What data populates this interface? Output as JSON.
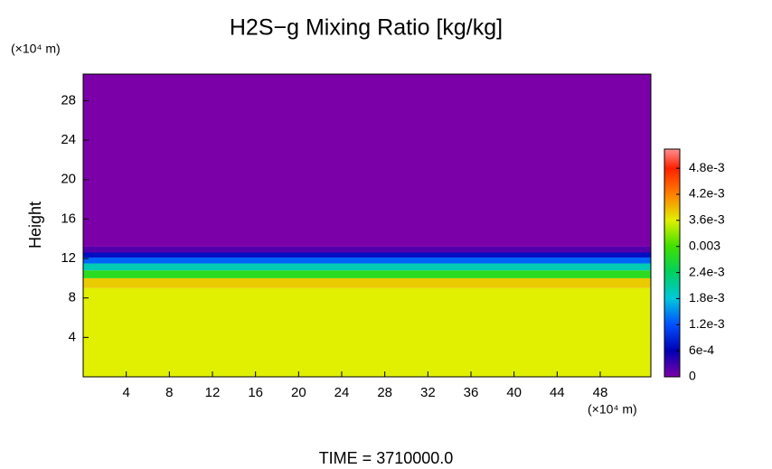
{
  "chart_data": {
    "type": "contour",
    "title": "H2S−g Mixing Ratio [kg/kg]",
    "y_label": "Height",
    "y_unit": "(×10⁴ m)",
    "x_unit": "(×10⁴ m)",
    "footer": "TIME = 3710000.0",
    "xlim": [
      0,
      52.7
    ],
    "ylim": [
      0,
      30.7
    ],
    "xticks": [
      4,
      8,
      12,
      16,
      20,
      24,
      28,
      32,
      36,
      40,
      44,
      48
    ],
    "yticks": [
      4,
      8,
      12,
      16,
      20,
      24,
      28
    ],
    "y_edges": [
      0,
      9,
      10,
      10.8,
      11.5,
      12.1,
      12.6,
      13.2,
      30.7
    ],
    "values": [
      0.0036,
      0.0038,
      0.0028,
      0.002,
      0.0013,
      0.0007,
      0.0002,
      0
    ],
    "clim": [
      0,
      0.00524
    ],
    "cticks": [
      0,
      {
        "value": 0.0006,
        "label": "6e-4"
      },
      {
        "value": 0.0012,
        "label": "1.2e-3"
      },
      {
        "value": 0.0018,
        "label": "1.8e-3"
      },
      {
        "value": 0.0024,
        "label": "2.4e-3"
      },
      0.003,
      {
        "value": 0.0036,
        "label": "3.6e-3"
      },
      {
        "value": 0.0042,
        "label": "4.2e-3"
      },
      {
        "value": 0.0048,
        "label": "4.8e-3"
      }
    ],
    "colorscale": [
      [
        0,
        "#7b00a8"
      ],
      [
        0.0006,
        "#0000b4"
      ],
      [
        0.0012,
        "#0050ff"
      ],
      [
        0.0018,
        "#00c8dc"
      ],
      [
        0.0024,
        "#00d060"
      ],
      [
        0.003,
        "#40e000"
      ],
      [
        0.0036,
        "#e0f000"
      ],
      [
        0.0042,
        "#ff8000"
      ],
      [
        0.0048,
        "#ff2000"
      ],
      [
        0.00524,
        "#ff9090"
      ]
    ]
  }
}
